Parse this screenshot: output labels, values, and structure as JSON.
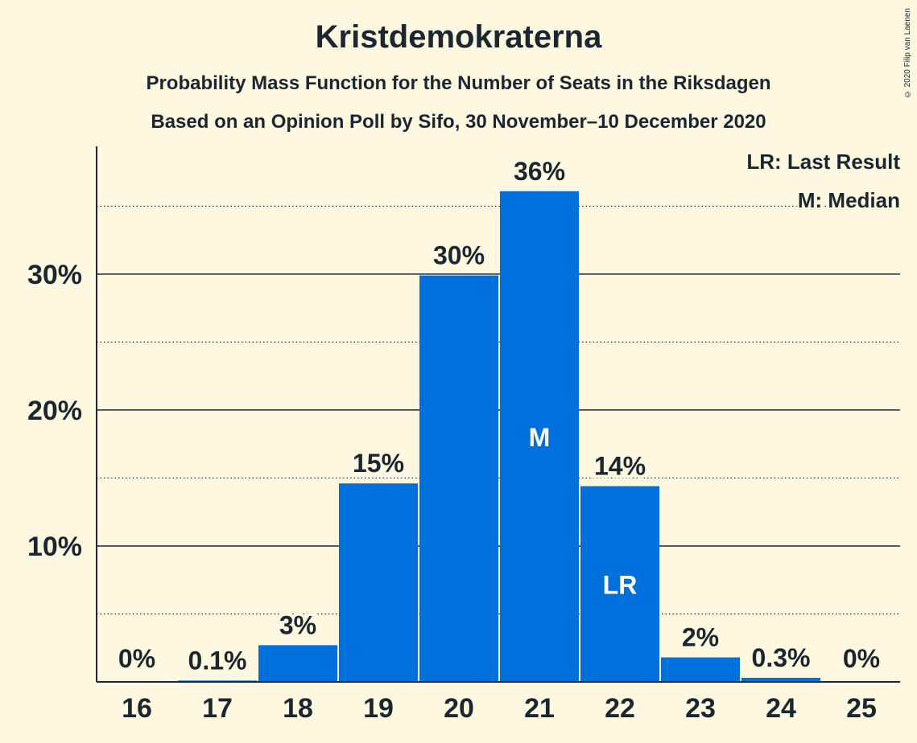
{
  "title": "Kristdemokraterna",
  "subtitle": "Probability Mass Function for the Number of Seats in the Riksdagen",
  "subtitle2": "Based on an Opinion Poll by Sifo, 30 November–10 December 2020",
  "copyright": "© 2020 Filip van Laenen",
  "colors": {
    "bar": "#0070dd",
    "background": "#fef8e0",
    "text": "#1a2630"
  },
  "chart_data": {
    "type": "bar",
    "categories": [
      "16",
      "17",
      "18",
      "19",
      "20",
      "21",
      "22",
      "23",
      "24",
      "25"
    ],
    "values": [
      0,
      0.1,
      2.7,
      14.6,
      29.9,
      36.1,
      14.4,
      1.8,
      0.3,
      0
    ],
    "value_labels": [
      "0%",
      "0.1%",
      "3%",
      "15%",
      "30%",
      "36%",
      "14%",
      "2%",
      "0.3%",
      "0%"
    ],
    "bar_markers": {
      "21": "M",
      "22": "LR"
    },
    "ylim": [
      0,
      39.4
    ],
    "yticks": [
      10,
      20,
      30
    ],
    "ytick_labels": [
      "10%",
      "20%",
      "30%"
    ],
    "minor_gridlines": [
      5,
      15,
      25,
      35
    ],
    "legend": [
      "LR: Last Result",
      "M: Median"
    ],
    "legend_position": "top-right"
  }
}
